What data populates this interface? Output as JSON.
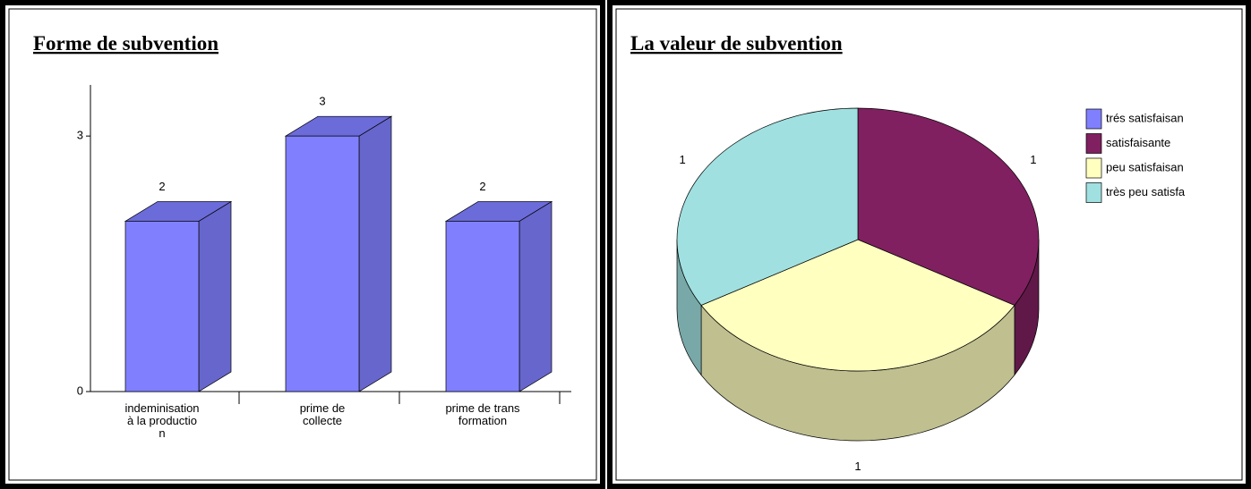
{
  "chart_data": [
    {
      "type": "bar3d",
      "title": "Forme de subvention",
      "categories": [
        "indeminisation\nà la productio\nn",
        "prime de\ncollecte",
        "prime de trans\nformation"
      ],
      "values": [
        2,
        3,
        2
      ],
      "color": "#8080ff",
      "ylim": [
        0,
        3.6
      ],
      "yticks": [
        0,
        3
      ]
    },
    {
      "type": "pie3d",
      "title": "La valeur de subvention",
      "categories": [
        "trés satisfaisan",
        "satisfaisante",
        "peu satisfaisan",
        "très peu satisfa"
      ],
      "values": [
        0,
        1,
        1,
        1
      ],
      "colors": [
        "#8080ff",
        "#802060",
        "#ffffc0",
        "#a0e0e0"
      ],
      "legend": "right"
    }
  ]
}
